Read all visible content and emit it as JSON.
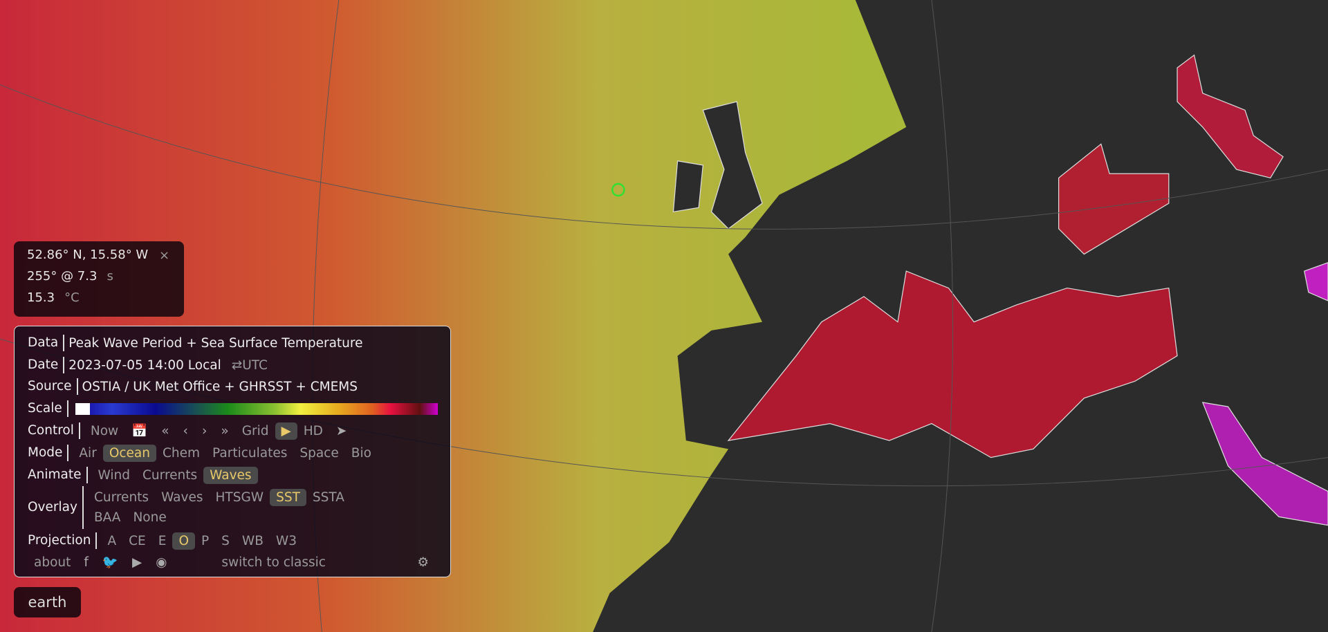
{
  "info": {
    "coordinates": "52.86° N, 15.58° W",
    "close": "×",
    "wave": "255° @ 7.3",
    "wave_unit": "s",
    "temp": "15.3",
    "temp_unit": "°C"
  },
  "panel": {
    "data_label": "Data",
    "data_value": "Peak Wave Period + Sea Surface Temperature",
    "date_label": "Date",
    "date_value": "2023-07-05 14:00 Local",
    "date_toggle": "⇄UTC",
    "source_label": "Source",
    "source_value": "OSTIA / UK Met Office + GHRSST + CMEMS",
    "scale_label": "Scale",
    "control_label": "Control",
    "control": {
      "now": "Now",
      "calendar": "calendar-icon",
      "back_fast": "«",
      "back": "‹",
      "forward": "›",
      "forward_fast": "»",
      "grid": "Grid",
      "play": "▶",
      "hd": "HD",
      "locate": "location-arrow-icon"
    },
    "mode_label": "Mode",
    "modes": [
      "Air",
      "Ocean",
      "Chem",
      "Particulates",
      "Space",
      "Bio"
    ],
    "mode_selected": "Ocean",
    "animate_label": "Animate",
    "animate": [
      "Wind",
      "Currents",
      "Waves"
    ],
    "animate_selected": "Waves",
    "overlay_label": "Overlay",
    "overlays": [
      "Currents",
      "Waves",
      "HTSGW",
      "SST",
      "SSTA",
      "BAA",
      "None"
    ],
    "overlay_selected": "SST",
    "projection_label": "Projection",
    "projections": [
      "A",
      "CE",
      "E",
      "O",
      "P",
      "S",
      "WB",
      "W3"
    ],
    "projection_selected": "O",
    "footer": {
      "about": "about",
      "switch": "switch to classic",
      "social": [
        "facebook-icon",
        "twitter-icon",
        "youtube-icon",
        "instagram-icon"
      ],
      "settings": "gear-icon"
    }
  },
  "earth_button": "earth",
  "colors": {
    "selected": "#e9c86a",
    "land": "#2c2c2c",
    "marker": "#30e030"
  }
}
